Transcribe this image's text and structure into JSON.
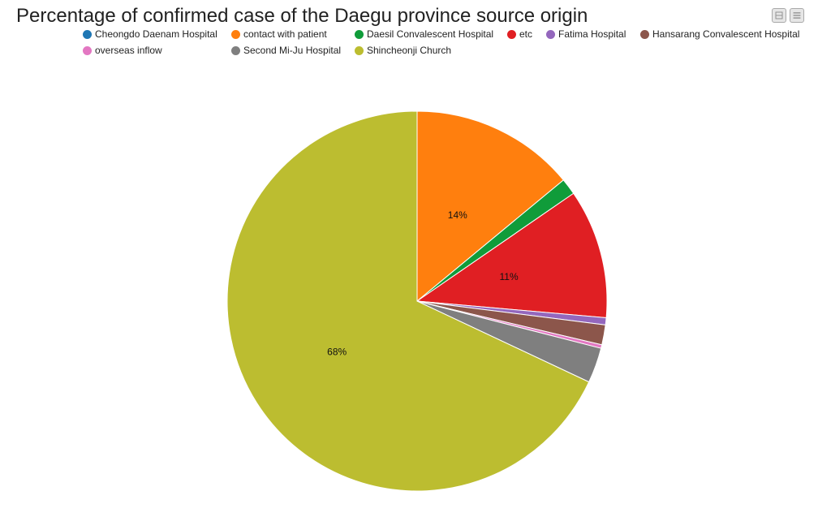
{
  "chart_data": {
    "type": "pie",
    "title": "Percentage of confirmed case of the Daegu province source origin",
    "slices": [
      {
        "label": "Cheongdo Daenam Hospital",
        "value": 0.0,
        "color": "#1f77b4",
        "pct_label": ""
      },
      {
        "label": "contact with patient",
        "value": 14.0,
        "color": "#ff7f0e",
        "pct_label": "14%"
      },
      {
        "label": "Daesil Convalescent Hospital",
        "value": 1.4,
        "color": "#109c3a",
        "pct_label": ""
      },
      {
        "label": "etc",
        "value": 11.0,
        "color": "#e01f23",
        "pct_label": "11%"
      },
      {
        "label": "Fatima Hospital",
        "value": 0.6,
        "color": "#9467bd",
        "pct_label": ""
      },
      {
        "label": "Hansarang Convalescent Hospital",
        "value": 1.7,
        "color": "#8c564b",
        "pct_label": ""
      },
      {
        "label": "overseas inflow",
        "value": 0.3,
        "color": "#e377c2",
        "pct_label": ""
      },
      {
        "label": "Second Mi-Ju Hospital",
        "value": 3.0,
        "color": "#7f7f7f",
        "pct_label": ""
      },
      {
        "label": "Shincheonji Church",
        "value": 68.0,
        "color": "#bcbd30",
        "pct_label": "68%"
      }
    ],
    "legend_position": "top"
  },
  "toolbar": {
    "buttons": [
      {
        "name": "minimize-button",
        "icon": "minimize-icon"
      },
      {
        "name": "menu-button",
        "icon": "menu-icon"
      }
    ]
  }
}
